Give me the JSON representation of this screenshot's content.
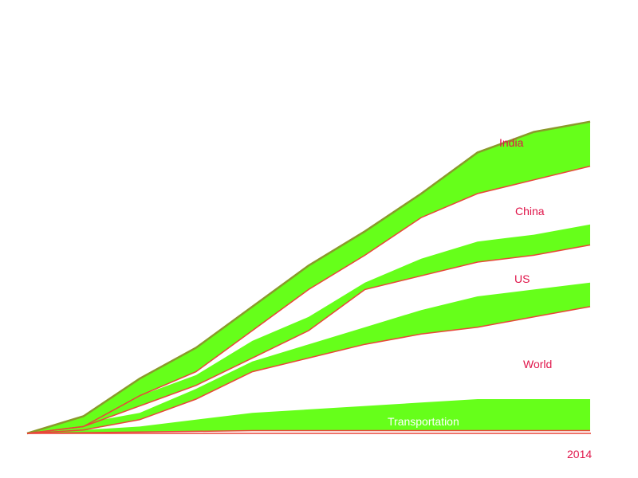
{
  "colors": {
    "band_fill": "#66ff1a",
    "band_edge": "#e8463a",
    "upper_line": "#8a9a2a",
    "label_red": "#e0154a",
    "label_white": "#ffffff",
    "background": "#ffffff"
  },
  "chart_data": {
    "type": "area",
    "title": "",
    "xlabel": "",
    "ylabel": "",
    "x_tick_labels": [
      "2014"
    ],
    "grid": false,
    "legend": "none",
    "annotations": [
      "India",
      "China",
      "US",
      "World",
      "Transportation"
    ],
    "x": [
      0,
      0.1,
      0.2,
      0.3,
      0.4,
      0.5,
      0.6,
      0.7,
      0.8,
      0.9,
      1.0
    ],
    "series": [
      {
        "name": "India",
        "lower": [
          0,
          0.02,
          0.11,
          0.18,
          0.3,
          0.42,
          0.52,
          0.63,
          0.7,
          0.74,
          0.78
        ],
        "upper": [
          0,
          0.05,
          0.16,
          0.25,
          0.37,
          0.49,
          0.59,
          0.7,
          0.82,
          0.88,
          0.91
        ]
      },
      {
        "name": "China",
        "lower": [
          0,
          0.02,
          0.08,
          0.14,
          0.22,
          0.3,
          0.42,
          0.46,
          0.5,
          0.52,
          0.55
        ],
        "upper": [
          0,
          0.04,
          0.11,
          0.17,
          0.27,
          0.34,
          0.44,
          0.51,
          0.56,
          0.58,
          0.61
        ]
      },
      {
        "name": "US",
        "lower": [
          0,
          0.01,
          0.04,
          0.1,
          0.18,
          0.22,
          0.26,
          0.29,
          0.31,
          0.34,
          0.37
        ],
        "upper": [
          0,
          0.03,
          0.06,
          0.13,
          0.21,
          0.26,
          0.31,
          0.36,
          0.4,
          0.42,
          0.44
        ]
      },
      {
        "name": "World",
        "lower": [
          0,
          0.002,
          0.004,
          0.006,
          0.008,
          0.008,
          0.008,
          0.008,
          0.008,
          0.008,
          0.008
        ],
        "upper": [
          0,
          0.01,
          0.02,
          0.04,
          0.06,
          0.07,
          0.08,
          0.09,
          0.1,
          0.1,
          0.1
        ]
      }
    ]
  },
  "labels": {
    "india": "India",
    "china": "China",
    "us": "US",
    "world": "World",
    "transportation": "Transportation",
    "year": "2014"
  }
}
